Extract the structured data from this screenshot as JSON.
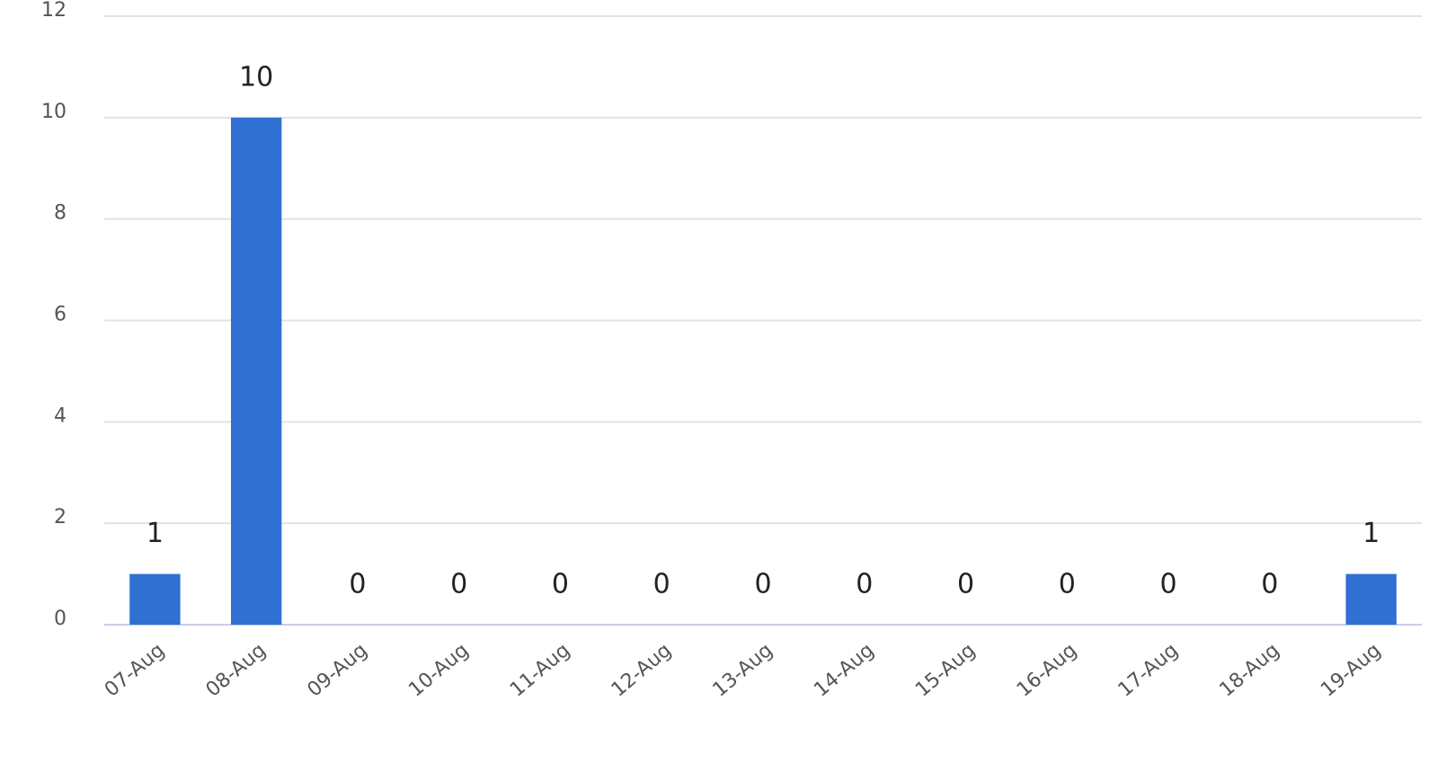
{
  "chart_data": {
    "type": "bar",
    "categories": [
      "07-Aug",
      "08-Aug",
      "09-Aug",
      "10-Aug",
      "11-Aug",
      "12-Aug",
      "13-Aug",
      "14-Aug",
      "15-Aug",
      "16-Aug",
      "17-Aug",
      "18-Aug",
      "19-Aug"
    ],
    "values": [
      1,
      10,
      0,
      0,
      0,
      0,
      0,
      0,
      0,
      0,
      0,
      0,
      1
    ],
    "color": "#3070d2",
    "ylim": [
      0,
      12
    ],
    "yticks": [
      0,
      2,
      4,
      6,
      8,
      10,
      12
    ],
    "grid": true
  }
}
